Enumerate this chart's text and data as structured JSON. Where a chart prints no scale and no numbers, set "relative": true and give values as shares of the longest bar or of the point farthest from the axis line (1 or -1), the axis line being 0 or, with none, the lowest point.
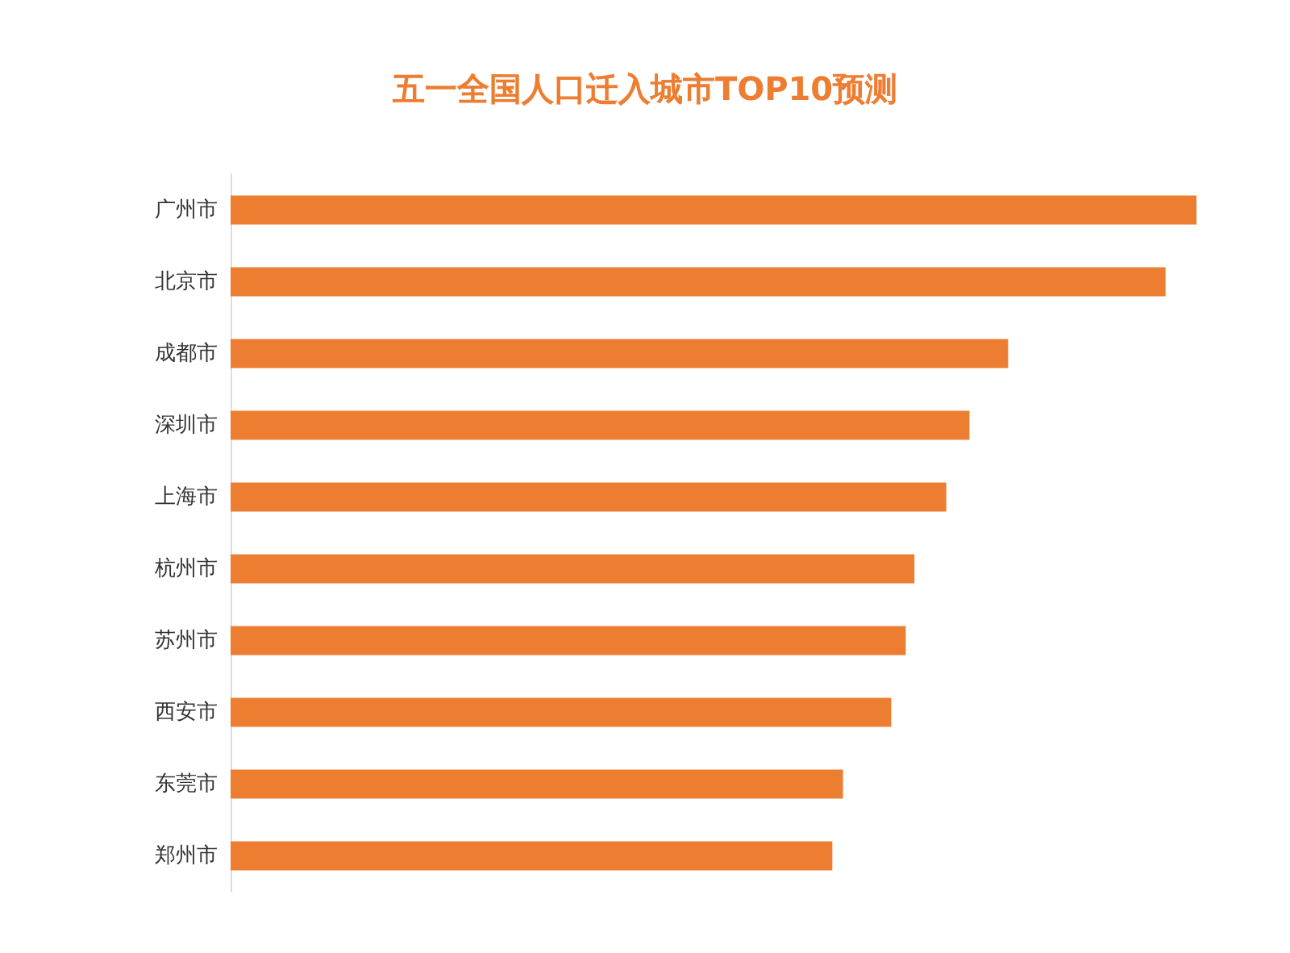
{
  "chart_data": {
    "type": "bar",
    "orientation": "horizontal",
    "relative": true,
    "title": "五一全国人口迁入城市TOP10预测",
    "categories": [
      "广州市",
      "北京市",
      "成都市",
      "深圳市",
      "上海市",
      "杭州市",
      "苏州市",
      "西安市",
      "东莞市",
      "郑州市"
    ],
    "values": [
      1,
      0.968,
      0.805,
      0.765,
      0.741,
      0.708,
      0.699,
      0.684,
      0.634,
      0.623
    ],
    "color": "#ed7d31"
  }
}
